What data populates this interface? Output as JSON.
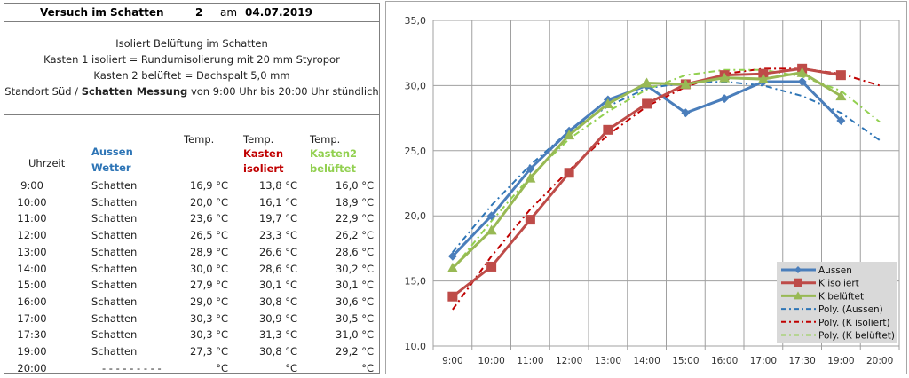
{
  "header": {
    "title": "Versuch im Schatten",
    "number": "2",
    "am": "am",
    "date": "04.07.2019"
  },
  "description": {
    "line1": "Isoliert Belüftung im Schatten",
    "line2": "Kasten 1 isoliert = Rundumisolierung mit 20 mm Styropor",
    "line3": "Kasten 2 belüftet = Dachspalt 5,0 mm",
    "line4_a": "Standort Süd / ",
    "line4_b": "Schatten Messung",
    "line4_c": " von 9:00 Uhr bis 20:00 Uhr stündlich"
  },
  "table": {
    "headers": {
      "uhrzeit": "Uhrzeit",
      "aussen1": "Aussen",
      "aussen2": "Wetter",
      "temp1": "Temp.",
      "temp2": "Temp.",
      "kasten1a": "Kasten",
      "kasten1b": "isoliert",
      "temp3": "Temp.",
      "kasten2a": "Kasten2",
      "kasten2b": "belüftet"
    },
    "rows": [
      {
        "time": "9:00",
        "weather": "Schatten",
        "aussen": "16,9 °C",
        "isoliert": "13,8 °C",
        "belueftet": "16,0 °C"
      },
      {
        "time": "10:00",
        "weather": "Schatten",
        "aussen": "20,0 °C",
        "isoliert": "16,1 °C",
        "belueftet": "18,9 °C"
      },
      {
        "time": "11:00",
        "weather": "Schatten",
        "aussen": "23,6 °C",
        "isoliert": "19,7 °C",
        "belueftet": "22,9 °C"
      },
      {
        "time": "12:00",
        "weather": "Schatten",
        "aussen": "26,5 °C",
        "isoliert": "23,3 °C",
        "belueftet": "26,2 °C"
      },
      {
        "time": "13:00",
        "weather": "Schatten",
        "aussen": "28,9 °C",
        "isoliert": "26,6 °C",
        "belueftet": "28,6 °C"
      },
      {
        "time": "14:00",
        "weather": "Schatten",
        "aussen": "30,0 °C",
        "isoliert": "28,6 °C",
        "belueftet": "30,2 °C"
      },
      {
        "time": "15:00",
        "weather": "Schatten",
        "aussen": "27,9 °C",
        "isoliert": "30,1 °C",
        "belueftet": "30,1 °C"
      },
      {
        "time": "16:00",
        "weather": "Schatten",
        "aussen": "29,0 °C",
        "isoliert": "30,8 °C",
        "belueftet": "30,6 °C"
      },
      {
        "time": "17:00",
        "weather": "Schatten",
        "aussen": "30,3 °C",
        "isoliert": "30,9 °C",
        "belueftet": "30,5 °C"
      },
      {
        "time": "17:30",
        "weather": "Schatten",
        "aussen": "30,3 °C",
        "isoliert": "31,3 °C",
        "belueftet": "31,0 °C"
      },
      {
        "time": "19:00",
        "weather": "Schatten",
        "aussen": "27,3 °C",
        "isoliert": "30,8 °C",
        "belueftet": "29,2 °C"
      },
      {
        "time": "20:00",
        "weather": "- - - - - - - - -",
        "aussen": "°C",
        "isoliert": "°C",
        "belueftet": "°C"
      }
    ]
  },
  "chart_data": {
    "type": "line",
    "categories": [
      "9:00",
      "10:00",
      "11:00",
      "12:00",
      "13:00",
      "14:00",
      "15:00",
      "16:00",
      "17:00",
      "17:30",
      "19:00",
      "20:00"
    ],
    "ylim": [
      10,
      35
    ],
    "yticks": [
      10,
      15,
      20,
      25,
      30,
      35
    ],
    "ytick_labels": [
      "10,0",
      "15,0",
      "20,0",
      "25,0",
      "30,0",
      "35,0"
    ],
    "grid": true,
    "legend_position": "bottom-right",
    "series": [
      {
        "name": "Aussen",
        "color": "#4a7ebb",
        "marker": "diamond",
        "values": [
          16.9,
          20.0,
          23.6,
          26.5,
          28.9,
          30.0,
          27.9,
          29.0,
          30.3,
          30.3,
          27.3,
          null
        ]
      },
      {
        "name": "K isoliert",
        "color": "#be4b48",
        "marker": "square",
        "values": [
          13.8,
          16.1,
          19.7,
          23.3,
          26.6,
          28.6,
          30.1,
          30.8,
          30.9,
          31.3,
          30.8,
          null
        ]
      },
      {
        "name": "K belüftet",
        "color": "#98b954",
        "marker": "triangle",
        "values": [
          16.0,
          18.9,
          22.9,
          26.2,
          28.6,
          30.2,
          30.1,
          30.6,
          30.5,
          31.0,
          29.2,
          null
        ]
      }
    ],
    "trendlines": [
      {
        "name": "Poly. (Aussen)",
        "color": "#2e75b6",
        "of": "Aussen",
        "values": [
          17.2,
          20.8,
          23.9,
          26.5,
          28.4,
          29.8,
          30.2,
          30.3,
          30.0,
          29.2,
          27.9,
          25.8
        ]
      },
      {
        "name": "Poly. (K isoliert)",
        "color": "#c00000",
        "of": "K isoliert",
        "values": [
          12.8,
          16.9,
          20.5,
          23.5,
          26.2,
          28.4,
          29.9,
          30.9,
          31.3,
          31.3,
          30.9,
          30.0
        ]
      },
      {
        "name": "Poly. (K belüftet)",
        "color": "#92d050",
        "of": "K belüftet",
        "values": [
          15.9,
          19.6,
          23.0,
          25.9,
          28.0,
          29.7,
          30.8,
          31.2,
          31.2,
          30.7,
          29.6,
          27.2
        ]
      }
    ]
  }
}
